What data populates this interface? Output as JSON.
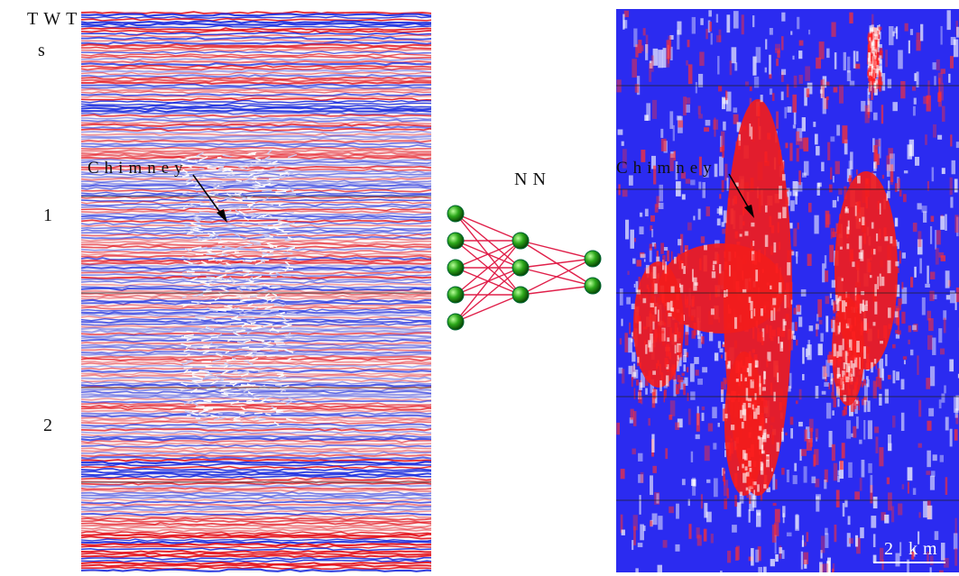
{
  "axis": {
    "title": "TWT",
    "unit": "s",
    "ticks": [
      1,
      2
    ]
  },
  "left_panel": {
    "annotation": "Chimney"
  },
  "network": {
    "label": "NN"
  },
  "right_panel": {
    "annotation": "Chimney",
    "scale_bar": "2 km"
  }
}
